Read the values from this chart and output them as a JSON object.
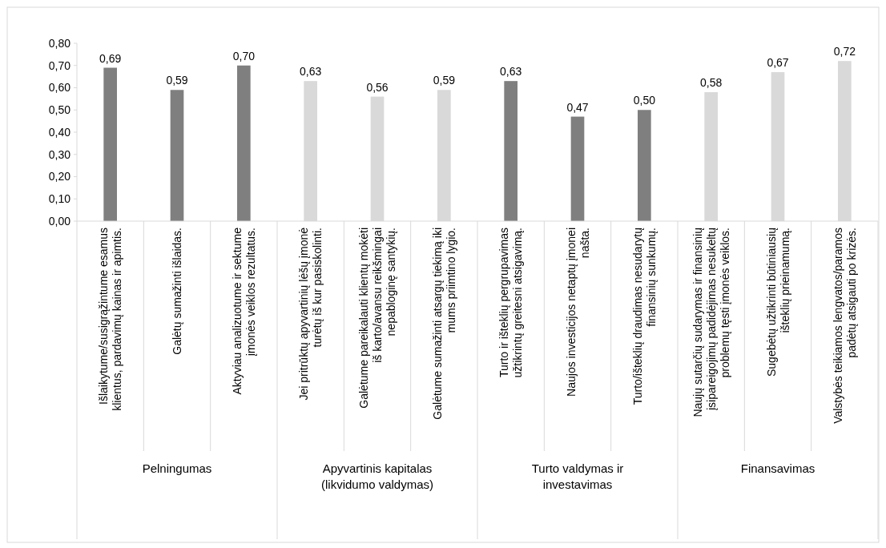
{
  "chart_data": {
    "type": "bar",
    "categories": [
      "Išlaikytume/susigrąžintume esamus klientus, pardavimų kainas ir apimtis.",
      "Galėtų sumažinti išlaidas.",
      "Aktyviau analizuotume ir sektume įmonės veiklos rezultatus.",
      "Jei pritrūktų apyvartinių lėšų įmonė turėtų iš kur pasiskolinti.",
      "Galėtume pareikalauti klientų mokėti iš karto/avansu reikšmingai nepabloginę santykių.",
      "Galėtume sumažinti atsargų tiekimą iki mums priimtino lygio.",
      "Turto ir išteklių pergrupavimas užtikrintų greitesni atsigavimą.",
      "Naujos investicijos netaptų įmonei našta.",
      "Turto/išteklių draudimas nesudarytų finansinių sunkumų.",
      "Naujų sutarčių sudarymas ir finansinių įsipareigojimų padidėjimas nesukeltų problemų tęsti įmonės veiklos.",
      "Sugebėtų užtikrinti būtiniausių išteklių prieinamumą.",
      "Valstybės teikiamos lengvatos/paramos padėtų atsigauti po krizės."
    ],
    "values": [
      0.69,
      0.59,
      0.7,
      0.63,
      0.56,
      0.59,
      0.63,
      0.47,
      0.5,
      0.58,
      0.67,
      0.72
    ],
    "value_labels": [
      "0,69",
      "0,59",
      "0,70",
      "0,63",
      "0,56",
      "0,59",
      "0,63",
      "0,47",
      "0,50",
      "0,58",
      "0,67",
      "0,72"
    ],
    "colors": [
      "#7f7f7f",
      "#7f7f7f",
      "#7f7f7f",
      "#d9d9d9",
      "#d9d9d9",
      "#d9d9d9",
      "#7f7f7f",
      "#7f7f7f",
      "#7f7f7f",
      "#d9d9d9",
      "#d9d9d9",
      "#d9d9d9"
    ],
    "ylim": [
      0,
      0.8
    ],
    "yticks": [
      {
        "value": 0,
        "label": "0,00"
      },
      {
        "value": 0.1,
        "label": "0,10"
      },
      {
        "value": 0.2,
        "label": "0,20"
      },
      {
        "value": 0.3,
        "label": "0,30"
      },
      {
        "value": 0.4,
        "label": "0,40"
      },
      {
        "value": 0.5,
        "label": "0,50"
      },
      {
        "value": 0.6,
        "label": "0,60"
      },
      {
        "value": 0.7,
        "label": "0,70"
      },
      {
        "value": 0.8,
        "label": "0,80"
      }
    ],
    "grid": false,
    "annotations": [
      "Pelningumas",
      "Apyvartinis kapitalas (likvidumo valdymas)",
      "Turto valdymas ir investavimas",
      "Finansavimas"
    ]
  }
}
